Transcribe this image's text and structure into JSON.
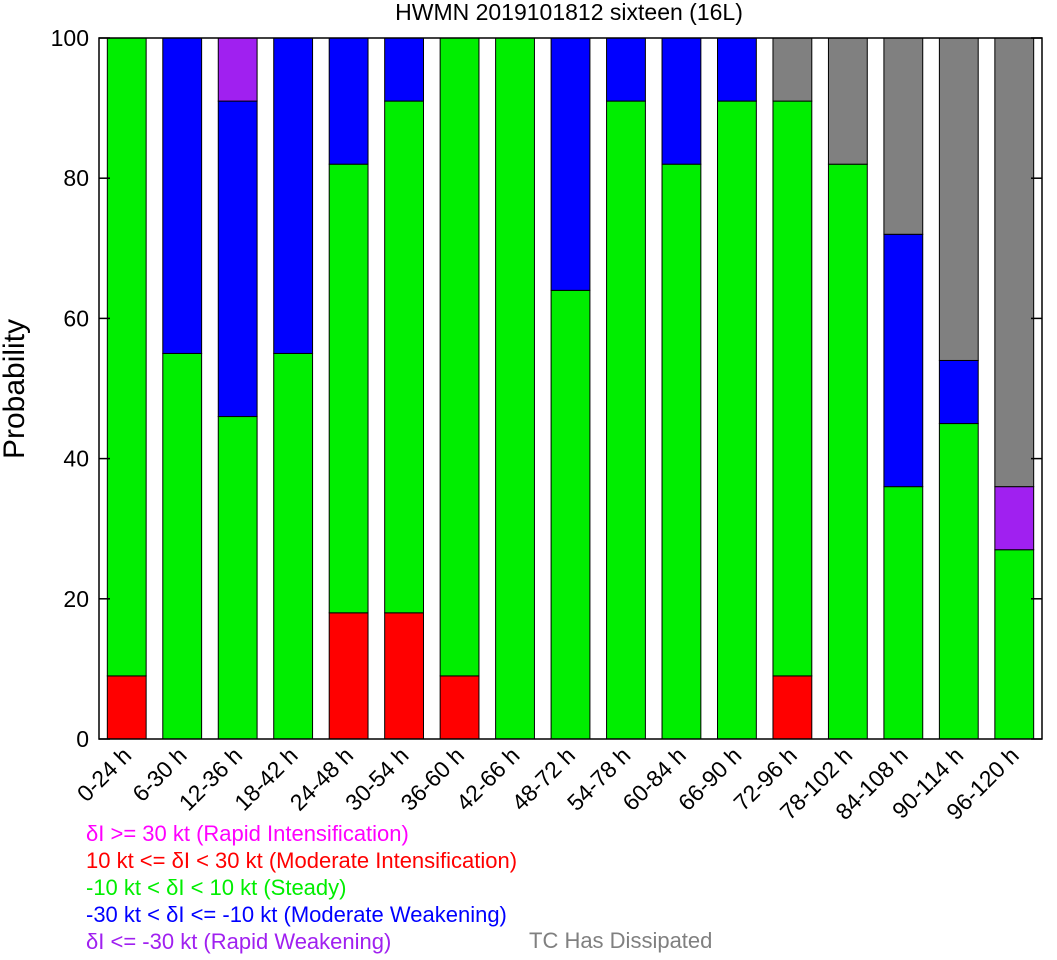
{
  "chart_data": {
    "type": "bar",
    "stacked": true,
    "title": "HWMN 2019101812 sixteen (16L)",
    "xlabel": "",
    "ylabel": "Probability",
    "ylim": [
      0,
      100
    ],
    "yticks": [
      0,
      20,
      40,
      60,
      80,
      100
    ],
    "grid": false,
    "legend_position": "bottom",
    "categories": [
      "0-24 h",
      "6-30 h",
      "12-36 h",
      "18-42 h",
      "24-48 h",
      "30-54 h",
      "36-60 h",
      "42-66 h",
      "48-72 h",
      "54-78 h",
      "60-84 h",
      "66-90 h",
      "72-96 h",
      "78-102 h",
      "84-108 h",
      "90-114 h",
      "96-120 h"
    ],
    "series": [
      {
        "name": "Rapid Intensification",
        "color": "#ff00ff",
        "values": [
          0,
          0,
          0,
          0,
          0,
          0,
          0,
          0,
          0,
          0,
          0,
          0,
          0,
          0,
          0,
          0,
          0
        ]
      },
      {
        "name": "Moderate Intensification",
        "color": "#ff0000",
        "values": [
          9,
          0,
          0,
          0,
          18,
          18,
          9,
          0,
          0,
          0,
          0,
          0,
          9,
          0,
          0,
          0,
          0
        ]
      },
      {
        "name": "Steady",
        "color": "#00ee00",
        "values": [
          91,
          55,
          46,
          55,
          64,
          73,
          91,
          100,
          64,
          91,
          82,
          91,
          82,
          82,
          36,
          45,
          27
        ]
      },
      {
        "name": "Moderate Weakening",
        "color": "#0000ff",
        "values": [
          0,
          45,
          45,
          45,
          18,
          9,
          0,
          0,
          36,
          9,
          18,
          9,
          0,
          0,
          36,
          9,
          0
        ]
      },
      {
        "name": "Rapid Weakening",
        "color": "#a020f0",
        "values": [
          0,
          0,
          9,
          0,
          0,
          0,
          0,
          0,
          0,
          0,
          0,
          0,
          0,
          0,
          0,
          0,
          9
        ]
      },
      {
        "name": "TC Has Dissipated",
        "color": "#808080",
        "values": [
          0,
          0,
          0,
          0,
          0,
          0,
          0,
          0,
          0,
          0,
          0,
          0,
          9,
          18,
          28,
          46,
          64
        ]
      }
    ]
  },
  "legend": {
    "items": [
      {
        "text": "δI >= 30 kt (Rapid Intensification)",
        "color": "#ff00ff"
      },
      {
        "text": "10 kt <= δI < 30 kt (Moderate Intensification)",
        "color": "#ff0000"
      },
      {
        "text": "-10 kt < δI < 10 kt (Steady)",
        "color": "#00ee00"
      },
      {
        "text": "-30 kt < δI <= -10 kt (Moderate Weakening)",
        "color": "#0000ff"
      },
      {
        "text": "δI <= -30 kt (Rapid Weakening)",
        "color": "#a020f0"
      }
    ],
    "dissipated": {
      "text": "TC Has Dissipated",
      "color": "#808080"
    }
  }
}
